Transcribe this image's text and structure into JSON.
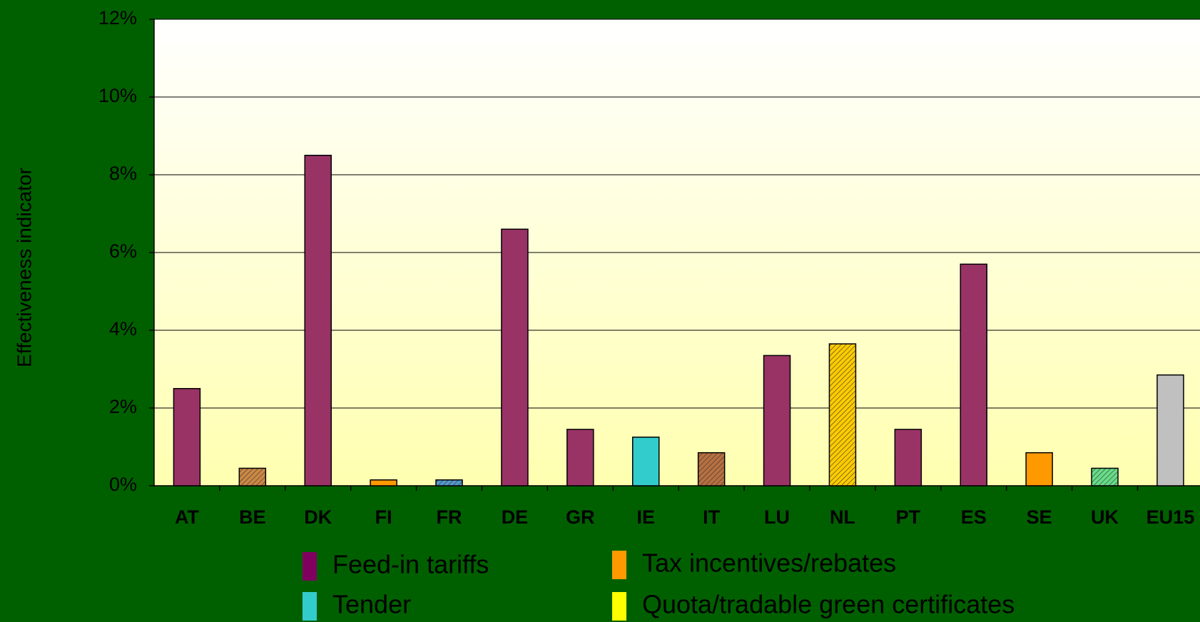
{
  "chart_data": {
    "type": "bar",
    "y_label": "Effectiveness indicator",
    "categories": [
      "AT",
      "BE",
      "DK",
      "FI",
      "FR",
      "DE",
      "GR",
      "IE",
      "IT",
      "LU",
      "NL",
      "PT",
      "ES",
      "SE",
      "UK",
      "EU15"
    ],
    "values": [
      2.5,
      0.45,
      8.5,
      0.15,
      0.15,
      6.6,
      1.45,
      1.25,
      0.85,
      3.35,
      3.65,
      1.45,
      5.7,
      0.85,
      0.45,
      2.85
    ],
    "colors": [
      "#993366",
      "#cc8844",
      "#993366",
      "#ff9900",
      "#5599cc",
      "#993366",
      "#993366",
      "#33cccc",
      "#b87040",
      "#993366",
      "#ffcc00",
      "#993366",
      "#993366",
      "#ff9900",
      "#66dd88",
      "#c0c0c0"
    ],
    "hatched": [
      false,
      true,
      false,
      false,
      true,
      false,
      false,
      false,
      true,
      false,
      true,
      false,
      false,
      false,
      true,
      false
    ],
    "ylim": [
      0,
      12
    ],
    "yticks": [
      {
        "value": 0,
        "label": "0%"
      },
      {
        "value": 2,
        "label": "2%"
      },
      {
        "value": 4,
        "label": "4%"
      },
      {
        "value": 6,
        "label": "6%"
      },
      {
        "value": 8,
        "label": "8%"
      },
      {
        "value": 10,
        "label": "10%"
      },
      {
        "value": 12,
        "label": "12%"
      }
    ],
    "grid": true,
    "legend": [
      {
        "name": "Feed-in tariffs",
        "color": "#800060"
      },
      {
        "name": "Tax incentives/rebates",
        "color": "#ff9900"
      },
      {
        "name": "Tender",
        "color": "#33cccc"
      },
      {
        "name": "Quota/tradable green certificates",
        "color": "#ffff00"
      }
    ]
  }
}
